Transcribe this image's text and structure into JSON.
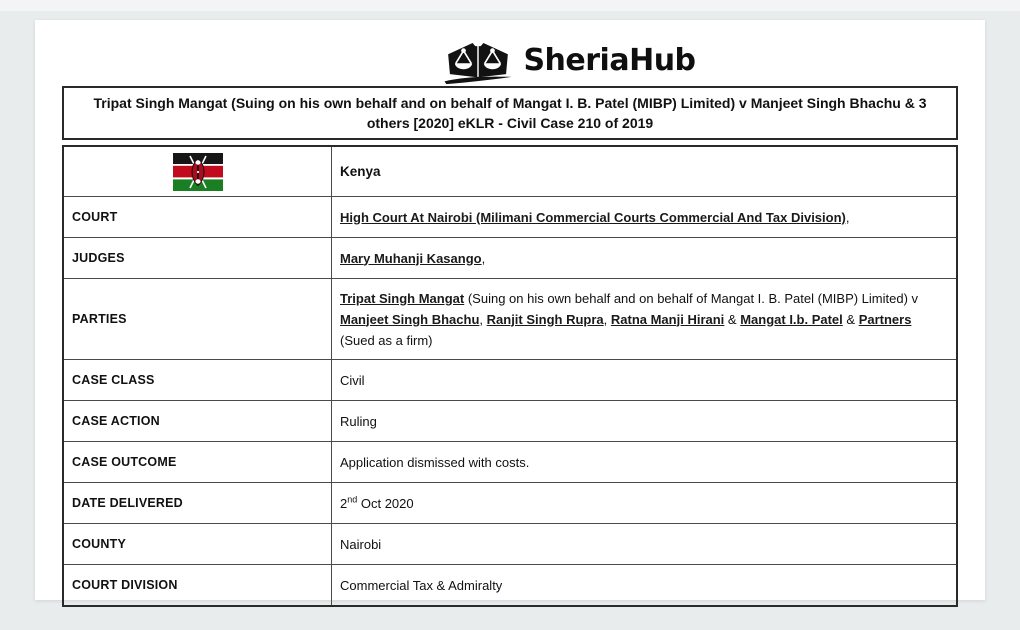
{
  "logo": {
    "brand": "SheriaHub",
    "icon": "scales-of-justice"
  },
  "case_header": {
    "title": "Tripat Singh Mangat (Suing on his own behalf and on behalf of Mangat I. B. Patel (MIBP) Limited) v Manjeet Singh Bhachu & 3 others [2020] eKLR - Civil Case 210 of 2019"
  },
  "country_row": {
    "flag": "kenya-flag",
    "name": "Kenya"
  },
  "details": {
    "rows": [
      {
        "label": "COURT",
        "segments": [
          {
            "t": "link",
            "v": "High Court At Nairobi (Milimani Commercial Courts Commercial And Tax Division)"
          },
          {
            "t": "text",
            "v": ","
          }
        ]
      },
      {
        "label": "JUDGES",
        "segments": [
          {
            "t": "link",
            "v": "Mary Muhanji Kasango"
          },
          {
            "t": "text",
            "v": ","
          }
        ]
      },
      {
        "label": "PARTIES",
        "tall": true,
        "segments": [
          {
            "t": "link",
            "v": "Tripat Singh Mangat"
          },
          {
            "t": "text",
            "v": " (Suing on his own behalf and on behalf of Mangat I. B. Patel (MIBP) Limited) v "
          },
          {
            "t": "link",
            "v": "Manjeet Singh Bhachu"
          },
          {
            "t": "text",
            "v": ", "
          },
          {
            "t": "link",
            "v": "Ranjit Singh Rupra"
          },
          {
            "t": "text",
            "v": ", "
          },
          {
            "t": "link",
            "v": "Ratna Manji Hirani"
          },
          {
            "t": "text",
            "v": " & "
          },
          {
            "t": "link",
            "v": "Mangat I.b. Patel"
          },
          {
            "t": "text",
            "v": " & "
          },
          {
            "t": "link",
            "v": "Partners"
          },
          {
            "t": "text",
            "v": " (Sued as a firm)"
          }
        ]
      },
      {
        "label": "CASE CLASS",
        "segments": [
          {
            "t": "text",
            "v": "Civil"
          }
        ]
      },
      {
        "label": "CASE ACTION",
        "segments": [
          {
            "t": "text",
            "v": "Ruling"
          }
        ]
      },
      {
        "label": "CASE OUTCOME",
        "segments": [
          {
            "t": "text",
            "v": "Application dismissed with costs."
          }
        ]
      },
      {
        "label": "DATE DELIVERED",
        "segments": [
          {
            "t": "text",
            "v": "2"
          },
          {
            "t": "sup",
            "v": "nd"
          },
          {
            "t": "text",
            "v": " Oct 2020"
          }
        ]
      },
      {
        "label": "COUNTY",
        "segments": [
          {
            "t": "text",
            "v": "Nairobi"
          }
        ]
      },
      {
        "label": "COURT DIVISION",
        "segments": [
          {
            "t": "text",
            "v": "Commercial Tax & Admiralty"
          }
        ]
      }
    ]
  },
  "colors": {
    "page_bg": "#e8eced",
    "card_bg": "#ffffff",
    "border_strong": "#2a2a2a",
    "border_light": "#4a4a4a",
    "text": "#111111",
    "link": "#1a1a1a",
    "flag_black": "#161616",
    "flag_red": "#c00c1e",
    "flag_green": "#1a7f23",
    "flag_shield_red": "#b00b1c"
  }
}
